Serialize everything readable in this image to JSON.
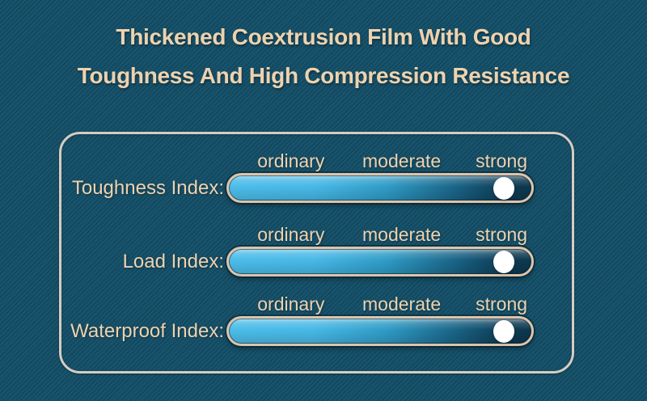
{
  "title": {
    "line1": "Thickened Coextrusion Film With Good",
    "line2": "Toughness And High Compression Resistance"
  },
  "scale": [
    "ordinary",
    "moderate",
    "strong"
  ],
  "rows": [
    {
      "label": "Toughness Index:",
      "rating": "strong",
      "value_percent": 90.8
    },
    {
      "label": "Load Index:",
      "rating": "strong",
      "value_percent": 90.8
    },
    {
      "label": "Waterproof Index:",
      "rating": "strong",
      "value_percent": 90.8
    }
  ],
  "chart_data": {
    "type": "bar",
    "title": "Thickened Coextrusion Film With Good Toughness And High Compression Resistance",
    "categories": [
      "Toughness Index",
      "Load Index",
      "Waterproof Index"
    ],
    "values": [
      90.8,
      90.8,
      90.8
    ],
    "value_labels": [
      "strong",
      "strong",
      "strong"
    ],
    "scale_ticks": [
      "ordinary",
      "moderate",
      "strong"
    ],
    "xlim": [
      0,
      100
    ],
    "orientation": "horizontal",
    "legend": false,
    "grid": false
  },
  "colors": {
    "background": "#15516a",
    "title_text": "#eed2ae",
    "panel_border": "#d5cdc2",
    "bar_border": "#dcc4ac",
    "bar_gradient_start": "#4bbde9",
    "bar_gradient_end": "#0c374e",
    "thumb": "#ffffff"
  }
}
